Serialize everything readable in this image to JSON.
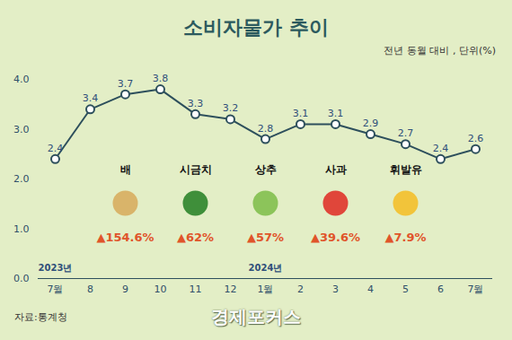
{
  "chart_data": {
    "type": "line",
    "title": "소비자물가 추이",
    "subtitle": "전년 동월 대비 , 단위(%)",
    "categories": [
      "7월",
      "8",
      "9",
      "10",
      "11",
      "12",
      "1월",
      "2",
      "3",
      "4",
      "5",
      "6",
      "7월"
    ],
    "values": [
      2.4,
      3.4,
      3.7,
      3.8,
      3.3,
      3.2,
      2.8,
      3.1,
      3.1,
      2.9,
      2.7,
      2.4,
      2.6
    ],
    "color": "#2d4f5c",
    "marker": "circle",
    "ylim": [
      0,
      4
    ],
    "yticks": [
      0,
      1,
      2,
      3,
      4
    ],
    "grid": false,
    "data_labels": true,
    "year_labels": [
      {
        "label": "2023년",
        "at": 0
      },
      {
        "label": "2024년",
        "at": 6
      }
    ],
    "items": [
      {
        "name": "배",
        "change": "▲154.6%"
      },
      {
        "name": "시금치",
        "change": "▲62%"
      },
      {
        "name": "상추",
        "change": "▲57%"
      },
      {
        "name": "사과",
        "change": "▲39.6%"
      },
      {
        "name": "휘발유",
        "change": "▲7.9%"
      }
    ],
    "source": "자료:통계청",
    "logo": "경제포커스"
  }
}
